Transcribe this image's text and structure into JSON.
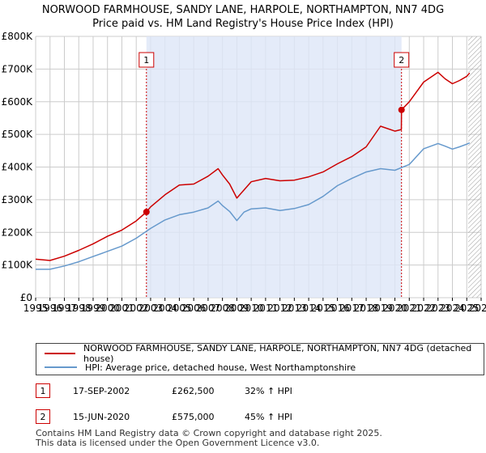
{
  "chart_data": {
    "type": "line",
    "title": "NORWOOD FARMHOUSE, SANDY LANE, HARPOLE, NORTHAMPTON, NN7 4DG",
    "subtitle": "Price paid vs. HM Land Registry's House Price Index (HPI)",
    "xlim": [
      1995,
      2026
    ],
    "ylim": [
      0,
      800000
    ],
    "x_ticks": [
      "1995",
      "1996",
      "1997",
      "1998",
      "1999",
      "2000",
      "2001",
      "2002",
      "2003",
      "2004",
      "2005",
      "2006",
      "2007",
      "2008",
      "2009",
      "2010",
      "2011",
      "2012",
      "2013",
      "2014",
      "2015",
      "2016",
      "2017",
      "2018",
      "2019",
      "2020",
      "2021",
      "2022",
      "2023",
      "2024",
      "2025",
      "2026"
    ],
    "y_ticks": [
      {
        "value": 0,
        "label": "£0"
      },
      {
        "value": 100000,
        "label": "£100K"
      },
      {
        "value": 200000,
        "label": "£200K"
      },
      {
        "value": 300000,
        "label": "£300K"
      },
      {
        "value": 400000,
        "label": "£400K"
      },
      {
        "value": 500000,
        "label": "£500K"
      },
      {
        "value": 600000,
        "label": "£600K"
      },
      {
        "value": 700000,
        "label": "£700K"
      },
      {
        "value": 800000,
        "label": "£800K"
      }
    ],
    "shade_ranges": [
      [
        2002.71,
        2020.46
      ]
    ],
    "hatch_from": 2025.1,
    "series": [
      {
        "name": "NORWOOD FARMHOUSE, SANDY LANE, HARPOLE, NORTHAMPTON, NN7 4DG (detached house)",
        "color": "#cc0000",
        "x": [
          1995,
          1996,
          1997,
          1998,
          1999,
          2000,
          2001,
          2002,
          2002.71,
          2003,
          2004,
          2005,
          2006,
          2007,
          2007.7,
          2008,
          2008.5,
          2009,
          2009.5,
          2010,
          2011,
          2012,
          2013,
          2014,
          2015,
          2016,
          2017,
          2018,
          2019,
          2020,
          2020.45,
          2020.46,
          2021,
          2022,
          2023,
          2023.5,
          2024,
          2024.5,
          2025,
          2025.2
        ],
        "y": [
          118000,
          114000,
          127000,
          145000,
          165000,
          188000,
          207000,
          235000,
          262500,
          278000,
          315000,
          345000,
          348000,
          372000,
          395000,
          376000,
          348000,
          305000,
          330000,
          355000,
          365000,
          358000,
          360000,
          370000,
          385000,
          410000,
          432000,
          462000,
          525000,
          510000,
          515000,
          575000,
          600000,
          660000,
          690000,
          670000,
          655000,
          665000,
          678000,
          688000
        ]
      },
      {
        "name": "HPI: Average price, detached house, West Northamptonshire",
        "color": "#6699cc",
        "x": [
          1995,
          1996,
          1997,
          1998,
          1999,
          2000,
          2001,
          2002,
          2003,
          2004,
          2005,
          2006,
          2007,
          2007.7,
          2008,
          2008.5,
          2009,
          2009.5,
          2010,
          2011,
          2012,
          2013,
          2014,
          2015,
          2016,
          2017,
          2018,
          2019,
          2020,
          2021,
          2022,
          2023,
          2023.5,
          2024,
          2024.5,
          2025,
          2025.2
        ],
        "y": [
          87000,
          87000,
          97000,
          110000,
          126000,
          142000,
          158000,
          182000,
          212000,
          238000,
          254000,
          262000,
          275000,
          296000,
          282000,
          264000,
          236000,
          262000,
          272000,
          275000,
          267000,
          273000,
          285000,
          310000,
          343000,
          365000,
          385000,
          395000,
          390000,
          408000,
          456000,
          472000,
          464000,
          455000,
          462000,
          470000,
          474000
        ]
      }
    ],
    "sales": [
      {
        "label": "1",
        "x": 2002.71,
        "y": 262500
      },
      {
        "label": "2",
        "x": 2020.46,
        "y": 575000
      }
    ],
    "legend_position": "below"
  },
  "legend": {
    "items": [
      {
        "label": "NORWOOD FARMHOUSE, SANDY LANE, HARPOLE, NORTHAMPTON, NN7 4DG (detached house)",
        "color": "#cc0000"
      },
      {
        "label": "HPI: Average price, detached house, West Northamptonshire",
        "color": "#6699cc"
      }
    ]
  },
  "sales_table": [
    {
      "num": "1",
      "date": "17-SEP-2002",
      "price": "£262,500",
      "hpi": "32% ↑ HPI"
    },
    {
      "num": "2",
      "date": "15-JUN-2020",
      "price": "£575,000",
      "hpi": "45% ↑ HPI"
    }
  ],
  "footer": {
    "line1": "Contains HM Land Registry data © Crown copyright and database right 2025.",
    "line2": "This data is licensed under the Open Government Licence v3.0."
  }
}
